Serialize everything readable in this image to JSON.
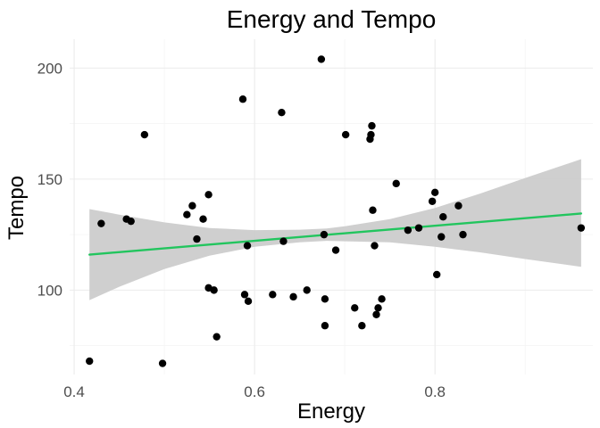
{
  "chart_data": {
    "type": "scatter",
    "title": "Energy and Tempo",
    "xlabel": "Energy",
    "ylabel": "Tempo",
    "xlim": [
      0.395,
      0.975
    ],
    "ylim": [
      62,
      213
    ],
    "x_ticks": [
      0.4,
      0.6,
      0.8
    ],
    "x_tick_labels": [
      "0.4",
      "0.6",
      "0.8"
    ],
    "y_ticks": [
      100,
      150,
      200
    ],
    "y_tick_labels": [
      "100",
      "150",
      "200"
    ],
    "grid": true,
    "colors": {
      "points": "#000000",
      "fit_line": "#22c55e",
      "confidence_band": "#cccccc"
    },
    "points": [
      {
        "x": 0.417,
        "y": 68
      },
      {
        "x": 0.43,
        "y": 130
      },
      {
        "x": 0.458,
        "y": 132
      },
      {
        "x": 0.463,
        "y": 131
      },
      {
        "x": 0.478,
        "y": 170
      },
      {
        "x": 0.498,
        "y": 67
      },
      {
        "x": 0.525,
        "y": 134
      },
      {
        "x": 0.531,
        "y": 138
      },
      {
        "x": 0.536,
        "y": 123
      },
      {
        "x": 0.543,
        "y": 132
      },
      {
        "x": 0.549,
        "y": 143
      },
      {
        "x": 0.549,
        "y": 101
      },
      {
        "x": 0.555,
        "y": 100
      },
      {
        "x": 0.558,
        "y": 79
      },
      {
        "x": 0.587,
        "y": 186
      },
      {
        "x": 0.589,
        "y": 98
      },
      {
        "x": 0.592,
        "y": 120
      },
      {
        "x": 0.593,
        "y": 95
      },
      {
        "x": 0.62,
        "y": 98
      },
      {
        "x": 0.63,
        "y": 180
      },
      {
        "x": 0.632,
        "y": 122
      },
      {
        "x": 0.643,
        "y": 97
      },
      {
        "x": 0.658,
        "y": 100
      },
      {
        "x": 0.674,
        "y": 204
      },
      {
        "x": 0.677,
        "y": 125
      },
      {
        "x": 0.678,
        "y": 96
      },
      {
        "x": 0.678,
        "y": 84
      },
      {
        "x": 0.69,
        "y": 118
      },
      {
        "x": 0.701,
        "y": 170
      },
      {
        "x": 0.711,
        "y": 92
      },
      {
        "x": 0.719,
        "y": 84
      },
      {
        "x": 0.728,
        "y": 168
      },
      {
        "x": 0.729,
        "y": 170
      },
      {
        "x": 0.73,
        "y": 174
      },
      {
        "x": 0.731,
        "y": 136
      },
      {
        "x": 0.733,
        "y": 120
      },
      {
        "x": 0.735,
        "y": 89
      },
      {
        "x": 0.737,
        "y": 92
      },
      {
        "x": 0.741,
        "y": 96
      },
      {
        "x": 0.757,
        "y": 148
      },
      {
        "x": 0.77,
        "y": 127
      },
      {
        "x": 0.782,
        "y": 128
      },
      {
        "x": 0.797,
        "y": 140
      },
      {
        "x": 0.8,
        "y": 144
      },
      {
        "x": 0.802,
        "y": 107
      },
      {
        "x": 0.807,
        "y": 124
      },
      {
        "x": 0.809,
        "y": 133
      },
      {
        "x": 0.826,
        "y": 138
      },
      {
        "x": 0.831,
        "y": 125
      },
      {
        "x": 0.962,
        "y": 128
      }
    ],
    "fit_line": {
      "x": [
        0.417,
        0.962
      ],
      "y": [
        116,
        134.5
      ]
    },
    "confidence_band": {
      "x": [
        0.417,
        0.45,
        0.5,
        0.55,
        0.6,
        0.65,
        0.68,
        0.7,
        0.75,
        0.8,
        0.85,
        0.9,
        0.962
      ],
      "lower": [
        95.5,
        101.5,
        109.5,
        115.5,
        119.5,
        121.5,
        122.2,
        122.0,
        121.5,
        119.5,
        117.0,
        114.0,
        110.5
      ],
      "upper": [
        136.5,
        134.0,
        130.5,
        128.0,
        127.0,
        127.2,
        127.8,
        128.8,
        132.0,
        137.0,
        143.5,
        150.5,
        159.0
      ]
    }
  }
}
